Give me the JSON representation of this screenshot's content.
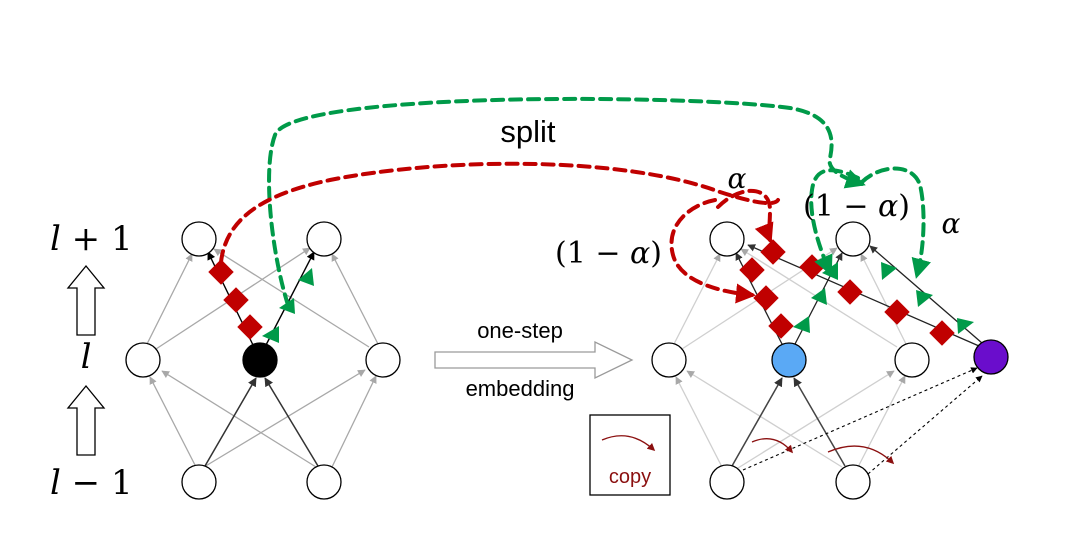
{
  "labels": {
    "split": "split",
    "one_step": "one-step",
    "embedding": "embedding",
    "copy": "copy"
  },
  "layer_labels": {
    "top_var": "l",
    "top_rest": " + 1",
    "mid_var": "l",
    "bottom_var": "l",
    "bottom_rest": " − 1"
  },
  "weights": {
    "alpha_top": "α",
    "left_prefix": "(1 − ",
    "left_alpha": "α",
    "left_suffix": ")",
    "right_prefix": "(1 − ",
    "right_alpha": "α",
    "right_suffix": ")",
    "alpha_right": "α"
  },
  "colors": {
    "red_path": "#c00000",
    "green_path": "#009a49",
    "black_node": "#000000",
    "blue_node": "#5aa9f5",
    "purple_node": "#6a0dcc",
    "copy_arrow": "#8b1010"
  }
}
